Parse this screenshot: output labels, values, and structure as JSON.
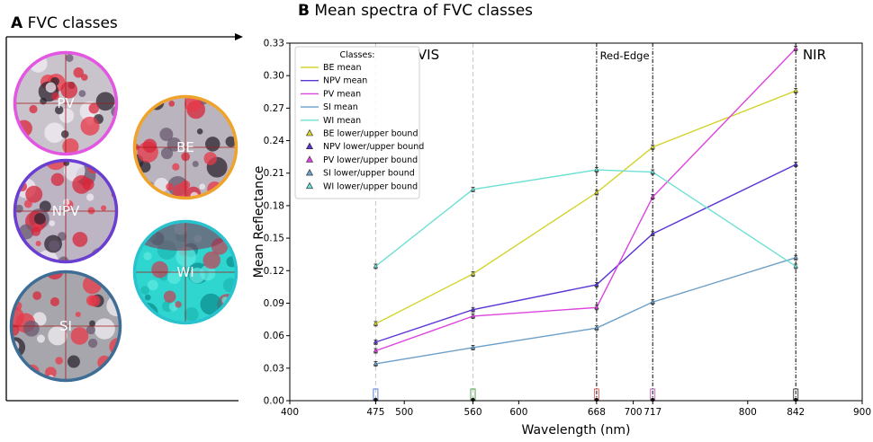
{
  "panel_a": {
    "letter": "A",
    "title": "FVC classes",
    "circles": [
      {
        "label": "PV",
        "border": "#e256e2",
        "base": "#c9c3cc"
      },
      {
        "label": "BE",
        "border": "#f0a32a",
        "base": "#b9b4bd"
      },
      {
        "label": "NPV",
        "border": "#6a3ed0",
        "base": "#bdb5c4"
      },
      {
        "label": "WI",
        "border": "#29c3cf",
        "base": "#2fd5cf"
      },
      {
        "label": "SI",
        "border": "#3e6d96",
        "base": "#a8a6ad"
      }
    ]
  },
  "panel_b": {
    "letter": "B",
    "title": "Mean spectra of FVC classes"
  },
  "chart_data": {
    "type": "line",
    "xlabel": "Wavelength (nm)",
    "ylabel": "Mean Reflectance",
    "xlim": [
      400,
      900
    ],
    "ylim": [
      0,
      0.33
    ],
    "x": [
      475,
      560,
      668,
      717,
      842
    ],
    "xticks": [
      400,
      475,
      500,
      560,
      600,
      668,
      700,
      717,
      800,
      842,
      900
    ],
    "yticks": [
      "0.00",
      "0.03",
      "0.06",
      "0.09",
      "0.12",
      "0.15",
      "0.18",
      "0.21",
      "0.24",
      "0.27",
      "0.30",
      "0.33"
    ],
    "regions": [
      {
        "label": "VIS",
        "x_from": 400,
        "x_to": 668
      },
      {
        "label": "Red-Edge",
        "x_from": 668,
        "x_to": 717
      },
      {
        "label": "NIR",
        "x_from": 842,
        "x_to": 900
      }
    ],
    "band_boxes": [
      {
        "x": 475,
        "color": "#4a6fd8"
      },
      {
        "x": 560,
        "color": "#3c9a3c"
      },
      {
        "x": 668,
        "color": "#e05555"
      },
      {
        "x": 717,
        "color": "#b05fb0"
      },
      {
        "x": 842,
        "color": "#333333"
      }
    ],
    "legend": {
      "title": "Classes:",
      "position": "top-left"
    },
    "series": [
      {
        "name": "BE mean",
        "bound_name": "BE lower/upper bound",
        "color": "#d4d42e",
        "values": [
          0.071,
          0.117,
          0.192,
          0.234,
          0.286
        ]
      },
      {
        "name": "NPV mean",
        "bound_name": "NPV lower/upper bound",
        "color": "#5a35d6",
        "values": [
          0.054,
          0.084,
          0.107,
          0.154,
          0.218
        ]
      },
      {
        "name": "PV mean",
        "bound_name": "PV lower/upper bound",
        "color": "#dd44dd",
        "values": [
          0.046,
          0.078,
          0.086,
          0.188,
          0.325
        ]
      },
      {
        "name": "SI mean",
        "bound_name": "SI lower/upper bound",
        "color": "#6b9fc9",
        "values": [
          0.034,
          0.049,
          0.067,
          0.091,
          0.132
        ]
      },
      {
        "name": "WI mean",
        "bound_name": "WI lower/upper bound",
        "color": "#6ee0d4",
        "values": [
          0.124,
          0.195,
          0.213,
          0.211,
          0.124
        ]
      }
    ]
  }
}
